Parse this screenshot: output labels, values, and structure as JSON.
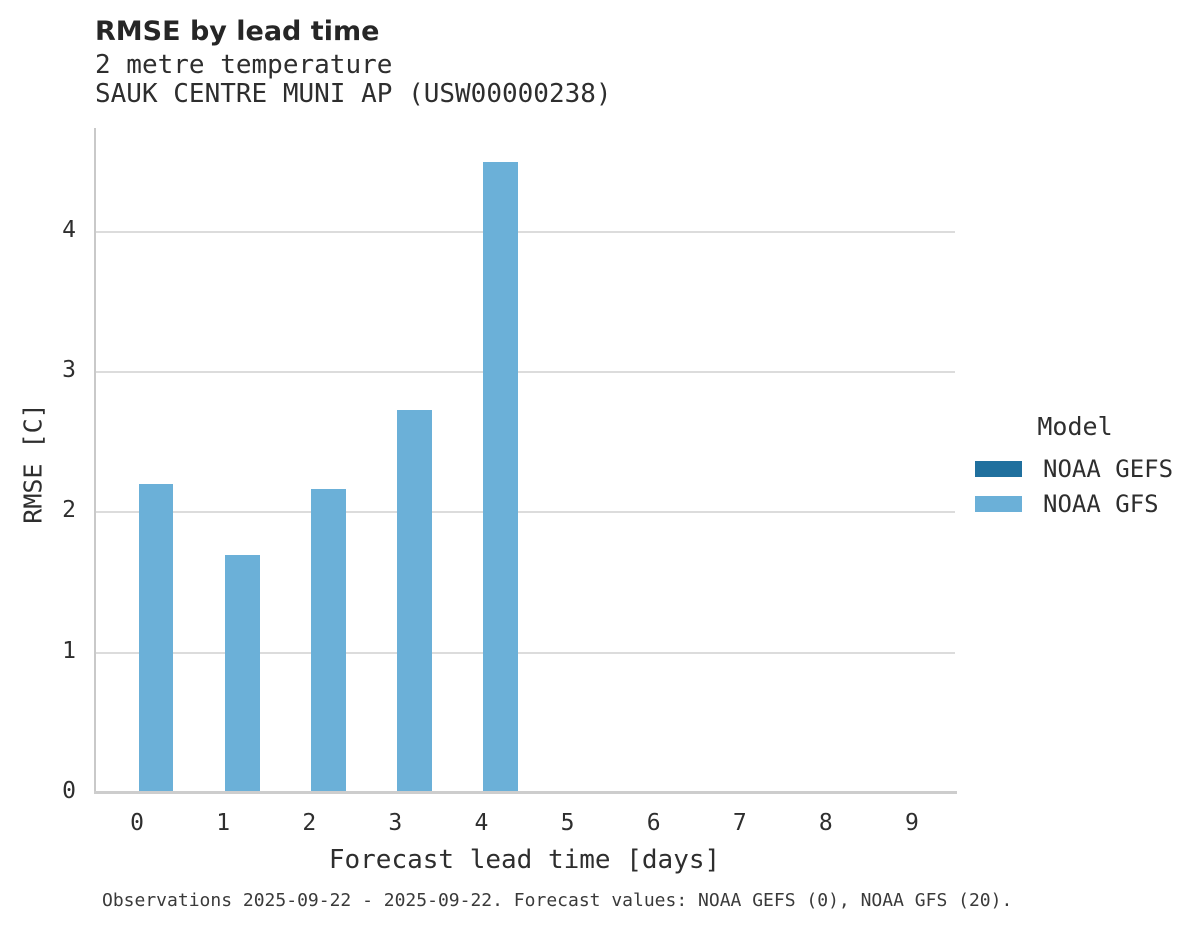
{
  "header": {
    "title": "RMSE by lead time",
    "subtitle_line1": "2 metre temperature",
    "subtitle_line2": "SAUK CENTRE MUNI AP (USW00000238)"
  },
  "chart_data": {
    "type": "bar",
    "title": "RMSE by lead time",
    "subtitle": [
      "2 metre temperature",
      "SAUK CENTRE MUNI AP (USW00000238)"
    ],
    "categories": [
      "0",
      "1",
      "2",
      "3",
      "4",
      "5",
      "6",
      "7",
      "8",
      "9"
    ],
    "series": [
      {
        "name": "NOAA GEFS",
        "color": "#20709e",
        "values": [
          null,
          null,
          null,
          null,
          null,
          null,
          null,
          null,
          null,
          null
        ]
      },
      {
        "name": "NOAA GFS",
        "color": "#6bb0d8",
        "values": [
          2.2,
          1.7,
          2.17,
          2.73,
          4.5,
          null,
          null,
          null,
          null,
          null
        ]
      }
    ],
    "xlabel": "Forecast lead time [days]",
    "ylabel": "RMSE [C]",
    "ylim": [
      0,
      4.74
    ],
    "yticks": [
      0,
      1,
      2,
      3,
      4
    ],
    "grid": "horizontal-only",
    "legend_title": "Model",
    "legend_position": "right-of-plot",
    "bar_group_width_fraction": 0.8
  },
  "footer": {
    "text": "Observations 2025-09-22 - 2025-09-22. Forecast values: NOAA GEFS (0), NOAA GFS (20)."
  },
  "colors": {
    "noaa_gefs": "#20709e",
    "noaa_gfs": "#6bb0d8",
    "gridline": "#dcdcdc",
    "spine": "#c9c9c9",
    "text": "#2a2a2a"
  }
}
